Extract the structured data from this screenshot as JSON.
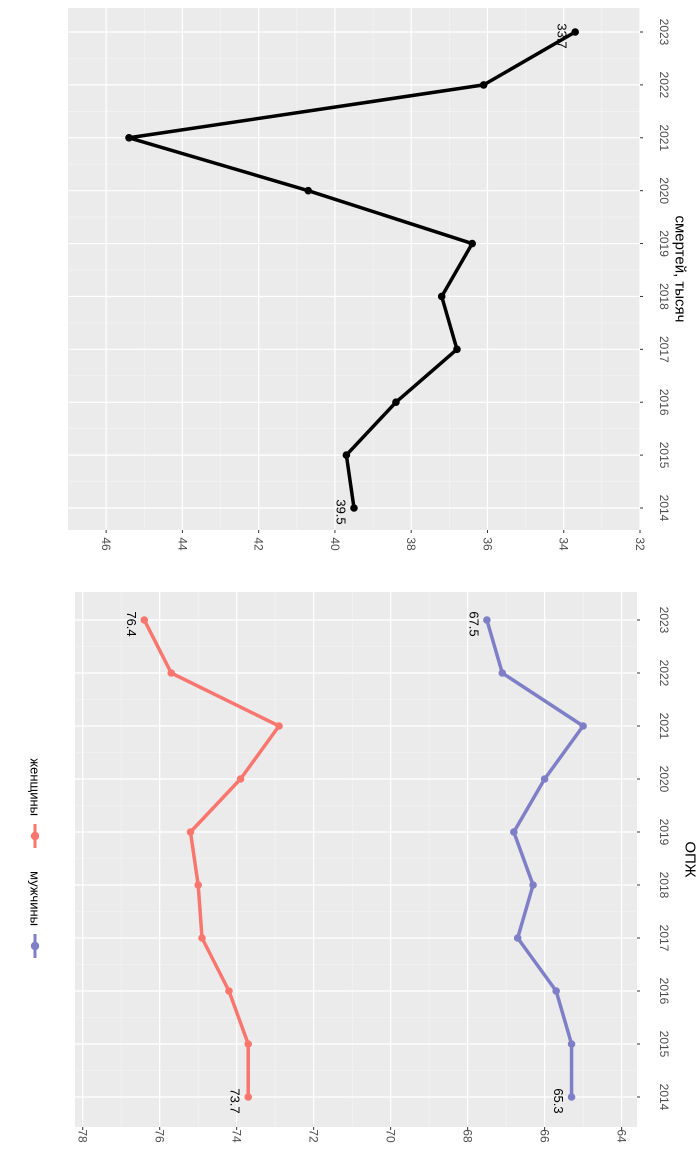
{
  "chart_data": [
    {
      "type": "line",
      "xlabel": "смертей, тысяч",
      "x": [
        "2014",
        "2015",
        "2016",
        "2017",
        "2018",
        "2019",
        "2020",
        "2021",
        "2022",
        "2023"
      ],
      "ylim": [
        32,
        47
      ],
      "yticks": [
        "32",
        "34",
        "36",
        "38",
        "40",
        "42",
        "44",
        "46"
      ],
      "series": [
        {
          "values": [
            39.5,
            39.7,
            38.4,
            36.8,
            37.2,
            36.4,
            40.7,
            45.4,
            36.1,
            33.7
          ],
          "color": "#000000",
          "labels": {
            "first": "39.5",
            "last": "33.7"
          }
        }
      ],
      "grid": true,
      "orientation": "rotated-90-clockwise"
    },
    {
      "type": "line",
      "xlabel": "ОПЖ",
      "x": [
        "2014",
        "2015",
        "2016",
        "2017",
        "2018",
        "2019",
        "2020",
        "2021",
        "2022",
        "2023"
      ],
      "ylim": [
        63.6,
        78.2
      ],
      "yticks": [
        "64",
        "66",
        "68",
        "70",
        "72",
        "74",
        "76",
        "78"
      ],
      "series": [
        {
          "name": "женщины",
          "color": "#F8766D",
          "values": [
            73.7,
            73.7,
            74.2,
            74.9,
            75.0,
            75.2,
            73.9,
            72.9,
            75.7,
            76.4
          ],
          "labels": {
            "first": "73.7",
            "last": "76.4"
          }
        },
        {
          "name": "мужчины",
          "color": "#7F7FC8",
          "values": [
            65.3,
            65.3,
            65.7,
            66.7,
            66.3,
            66.8,
            66.0,
            65.0,
            67.1,
            67.5
          ],
          "labels": {
            "first": "65.3",
            "last": "67.5"
          }
        }
      ],
      "legend": "top",
      "grid": true,
      "orientation": "rotated-90-clockwise"
    }
  ]
}
